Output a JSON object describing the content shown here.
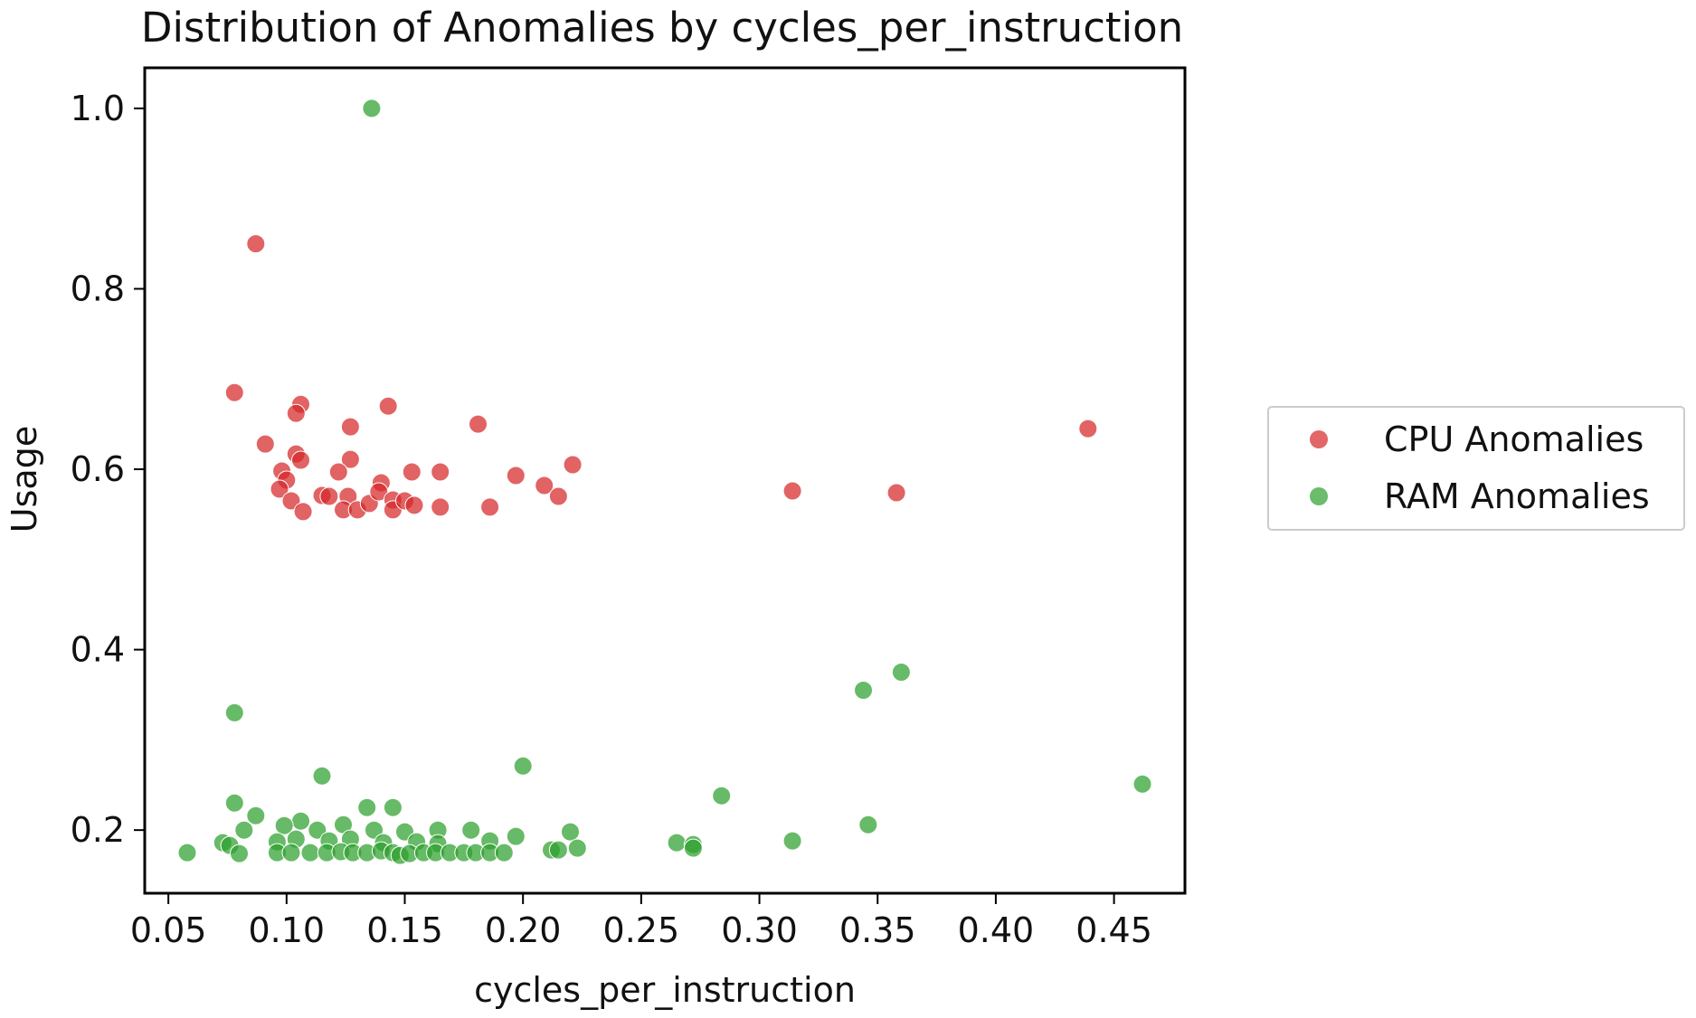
{
  "chart_data": {
    "type": "scatter",
    "title": "Distribution of Anomalies by cycles_per_instruction",
    "xlabel": "cycles_per_instruction",
    "ylabel": "Usage",
    "xlim": [
      0.04,
      0.48
    ],
    "ylim": [
      0.13,
      1.045
    ],
    "x_ticks": [
      "0.05",
      "0.10",
      "0.15",
      "0.20",
      "0.25",
      "0.30",
      "0.35",
      "0.40",
      "0.45"
    ],
    "x_tick_values": [
      0.05,
      0.1,
      0.15,
      0.2,
      0.25,
      0.3,
      0.35,
      0.4,
      0.45
    ],
    "y_ticks": [
      "0.2",
      "0.4",
      "0.6",
      "0.8",
      "1.0"
    ],
    "y_tick_values": [
      0.2,
      0.4,
      0.6,
      0.8,
      1.0
    ],
    "grid": false,
    "legend_position": "right-center",
    "series": [
      {
        "name": "CPU Anomalies",
        "color": "#d62728",
        "points": [
          [
            0.087,
            0.85
          ],
          [
            0.078,
            0.685
          ],
          [
            0.106,
            0.672
          ],
          [
            0.104,
            0.662
          ],
          [
            0.143,
            0.67
          ],
          [
            0.127,
            0.647
          ],
          [
            0.181,
            0.65
          ],
          [
            0.091,
            0.628
          ],
          [
            0.104,
            0.617
          ],
          [
            0.106,
            0.61
          ],
          [
            0.127,
            0.611
          ],
          [
            0.098,
            0.598
          ],
          [
            0.122,
            0.597
          ],
          [
            0.14,
            0.585
          ],
          [
            0.1,
            0.588
          ],
          [
            0.097,
            0.578
          ],
          [
            0.153,
            0.597
          ],
          [
            0.165,
            0.597
          ],
          [
            0.197,
            0.593
          ],
          [
            0.209,
            0.582
          ],
          [
            0.221,
            0.605
          ],
          [
            0.215,
            0.57
          ],
          [
            0.102,
            0.565
          ],
          [
            0.107,
            0.553
          ],
          [
            0.115,
            0.571
          ],
          [
            0.118,
            0.57
          ],
          [
            0.126,
            0.57
          ],
          [
            0.124,
            0.555
          ],
          [
            0.13,
            0.555
          ],
          [
            0.135,
            0.562
          ],
          [
            0.139,
            0.575
          ],
          [
            0.145,
            0.566
          ],
          [
            0.145,
            0.555
          ],
          [
            0.15,
            0.565
          ],
          [
            0.154,
            0.56
          ],
          [
            0.165,
            0.558
          ],
          [
            0.186,
            0.558
          ],
          [
            0.314,
            0.576
          ],
          [
            0.358,
            0.574
          ],
          [
            0.439,
            0.645
          ]
        ]
      },
      {
        "name": "RAM Anomalies",
        "color": "#2ca02c",
        "points": [
          [
            0.136,
            1.0
          ],
          [
            0.078,
            0.33
          ],
          [
            0.115,
            0.26
          ],
          [
            0.2,
            0.271
          ],
          [
            0.078,
            0.23
          ],
          [
            0.087,
            0.216
          ],
          [
            0.134,
            0.225
          ],
          [
            0.145,
            0.225
          ],
          [
            0.106,
            0.21
          ],
          [
            0.099,
            0.205
          ],
          [
            0.124,
            0.206
          ],
          [
            0.082,
            0.2
          ],
          [
            0.113,
            0.2
          ],
          [
            0.137,
            0.2
          ],
          [
            0.15,
            0.198
          ],
          [
            0.164,
            0.2
          ],
          [
            0.178,
            0.2
          ],
          [
            0.197,
            0.193
          ],
          [
            0.22,
            0.198
          ],
          [
            0.073,
            0.186
          ],
          [
            0.076,
            0.183
          ],
          [
            0.096,
            0.187
          ],
          [
            0.104,
            0.19
          ],
          [
            0.118,
            0.188
          ],
          [
            0.127,
            0.19
          ],
          [
            0.141,
            0.186
          ],
          [
            0.155,
            0.187
          ],
          [
            0.164,
            0.185
          ],
          [
            0.186,
            0.188
          ],
          [
            0.08,
            0.174
          ],
          [
            0.058,
            0.175
          ],
          [
            0.096,
            0.175
          ],
          [
            0.102,
            0.175
          ],
          [
            0.11,
            0.175
          ],
          [
            0.117,
            0.175
          ],
          [
            0.123,
            0.176
          ],
          [
            0.128,
            0.175
          ],
          [
            0.134,
            0.175
          ],
          [
            0.14,
            0.177
          ],
          [
            0.145,
            0.175
          ],
          [
            0.148,
            0.172
          ],
          [
            0.152,
            0.174
          ],
          [
            0.158,
            0.175
          ],
          [
            0.163,
            0.175
          ],
          [
            0.169,
            0.175
          ],
          [
            0.175,
            0.175
          ],
          [
            0.18,
            0.175
          ],
          [
            0.186,
            0.175
          ],
          [
            0.192,
            0.175
          ],
          [
            0.212,
            0.178
          ],
          [
            0.215,
            0.178
          ],
          [
            0.223,
            0.18
          ],
          [
            0.265,
            0.186
          ],
          [
            0.272,
            0.184
          ],
          [
            0.272,
            0.18
          ],
          [
            0.284,
            0.238
          ],
          [
            0.314,
            0.188
          ],
          [
            0.344,
            0.355
          ],
          [
            0.346,
            0.206
          ],
          [
            0.36,
            0.375
          ],
          [
            0.462,
            0.251
          ]
        ]
      }
    ]
  }
}
